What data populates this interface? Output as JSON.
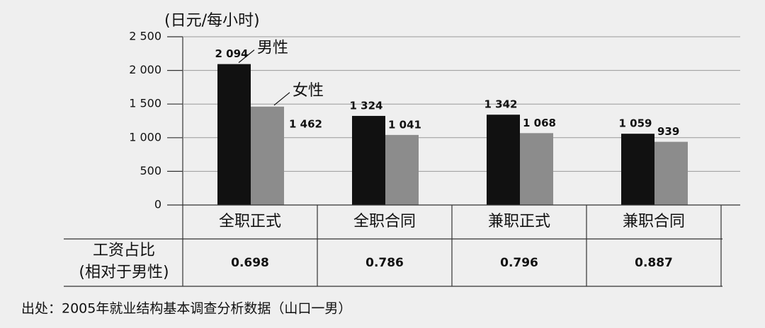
{
  "chart_data": {
    "type": "bar",
    "y_label": "(日元/每小时)",
    "categories": [
      "全职正式",
      "全职合同",
      "兼职正式",
      "兼职合同"
    ],
    "series": [
      {
        "name": "男性",
        "color": "#111111",
        "values": [
          2094,
          1324,
          1342,
          1059
        ],
        "value_labels": [
          "2 094",
          "1 324",
          "1 342",
          "1 059"
        ]
      },
      {
        "name": "女性",
        "color": "#8c8c8c",
        "values": [
          1462,
          1041,
          1068,
          939
        ],
        "value_labels": [
          "1 462",
          "1 041",
          "1 068",
          "939"
        ]
      }
    ],
    "ylim": [
      0,
      2500
    ],
    "yticks": [
      0,
      500,
      {
        "value": 1000,
        "label": "1 000"
      },
      {
        "value": 1500,
        "label": "1 500"
      },
      {
        "value": 2000,
        "label": "2 000"
      },
      {
        "value": 2500,
        "label": "2 500"
      }
    ],
    "grid": true,
    "table": {
      "row_label": [
        "工资占比",
        "(相对于男性)"
      ],
      "values": [
        0.698,
        0.786,
        0.796,
        0.887
      ]
    },
    "source": "出处：2005年就业结构基本调查分析数据（山口一男）"
  }
}
